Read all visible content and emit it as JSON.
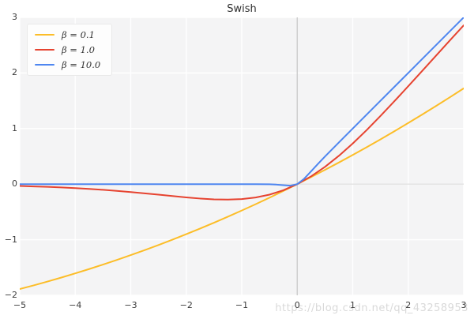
{
  "watermark": {
    "text": "https://blog.csdn.net/qq_43258953"
  },
  "chart_data": {
    "type": "line",
    "title": "Swish",
    "xlabel": "",
    "ylabel": "",
    "xlim": [
      -5,
      3
    ],
    "ylim": [
      -2,
      3
    ],
    "grid": true,
    "legend_position": "upper left",
    "x_ticks": [
      -5,
      -4,
      -3,
      -2,
      -1,
      0,
      1,
      2,
      3
    ],
    "x_tick_labels": [
      "−5",
      "−4",
      "−3",
      "−2",
      "−1",
      "0",
      "1",
      "2",
      "3"
    ],
    "y_ticks": [
      -2,
      -1,
      0,
      1,
      2,
      3
    ],
    "y_tick_labels": [
      "−2",
      "−1",
      "0",
      "1",
      "2",
      "3"
    ],
    "plot_background": "#f4f4f5",
    "grid_color": "#ffffff",
    "zero_vline_color": "#cccccc",
    "zero_hline_color": "#e2e2e2",
    "series": [
      {
        "id": "beta-0-1",
        "name": "β = 0.1",
        "color": "#fcbd28",
        "x": [
          -5,
          -4.75,
          -4.5,
          -4.25,
          -4,
          -3.75,
          -3.5,
          -3.25,
          -3,
          -2.75,
          -2.5,
          -2.25,
          -2,
          -1.75,
          -1.5,
          -1.25,
          -1,
          -0.75,
          -0.5,
          -0.25,
          0,
          0.25,
          0.5,
          0.75,
          1,
          1.25,
          1.5,
          1.75,
          2,
          2.25,
          2.5,
          2.75,
          3
        ],
        "y": [
          -1.8877,
          -1.8213,
          -1.7521,
          -1.6801,
          -1.6052,
          -1.5275,
          -1.4468,
          -1.3633,
          -1.2767,
          -1.1871,
          -1.0946,
          -0.999,
          -0.9003,
          -0.7986,
          -0.6939,
          -0.586,
          -0.475,
          -0.3609,
          -0.2438,
          -0.1234,
          0,
          0.1266,
          0.2562,
          0.3891,
          0.525,
          0.664,
          0.8061,
          0.9514,
          1.0997,
          1.251,
          1.4054,
          1.5629,
          1.7233
        ]
      },
      {
        "id": "beta-1-0",
        "name": "β = 1.0",
        "color": "#e64330",
        "x": [
          -5,
          -4.75,
          -4.5,
          -4.25,
          -4,
          -3.75,
          -3.5,
          -3.25,
          -3,
          -2.75,
          -2.5,
          -2.25,
          -2,
          -1.75,
          -1.5,
          -1.25,
          -1,
          -0.75,
          -0.5,
          -0.25,
          0,
          0.25,
          0.5,
          0.75,
          1,
          1.25,
          1.5,
          1.75,
          2,
          2.25,
          2.5,
          2.75,
          3
        ],
        "y": [
          -0.0335,
          -0.0407,
          -0.0494,
          -0.0598,
          -0.0719,
          -0.0862,
          -0.1026,
          -0.1213,
          -0.1423,
          -0.1652,
          -0.1896,
          -0.2145,
          -0.2384,
          -0.2591,
          -0.2736,
          -0.2784,
          -0.2689,
          -0.2406,
          -0.1888,
          -0.1095,
          0,
          0.1405,
          0.3112,
          0.5094,
          0.7311,
          0.9716,
          1.2264,
          1.4909,
          1.7616,
          2.0355,
          2.3104,
          2.5848,
          2.8577
        ]
      },
      {
        "id": "beta-10-0",
        "name": "β = 10.0",
        "color": "#4e86f0",
        "x": [
          -5,
          -4,
          -3,
          -2,
          -1,
          -0.75,
          -0.5,
          -0.375,
          -0.25,
          -0.125,
          0,
          0.125,
          0.25,
          0.375,
          0.5,
          0.75,
          1,
          1.5,
          2,
          2.5,
          3
        ],
        "y": [
          0,
          0,
          0,
          0,
          0,
          -0.0004,
          -0.0033,
          -0.0086,
          -0.019,
          -0.0278,
          0,
          0.0972,
          0.231,
          0.3664,
          0.4967,
          0.7496,
          1,
          1.5,
          2,
          2.5,
          3
        ]
      }
    ]
  }
}
